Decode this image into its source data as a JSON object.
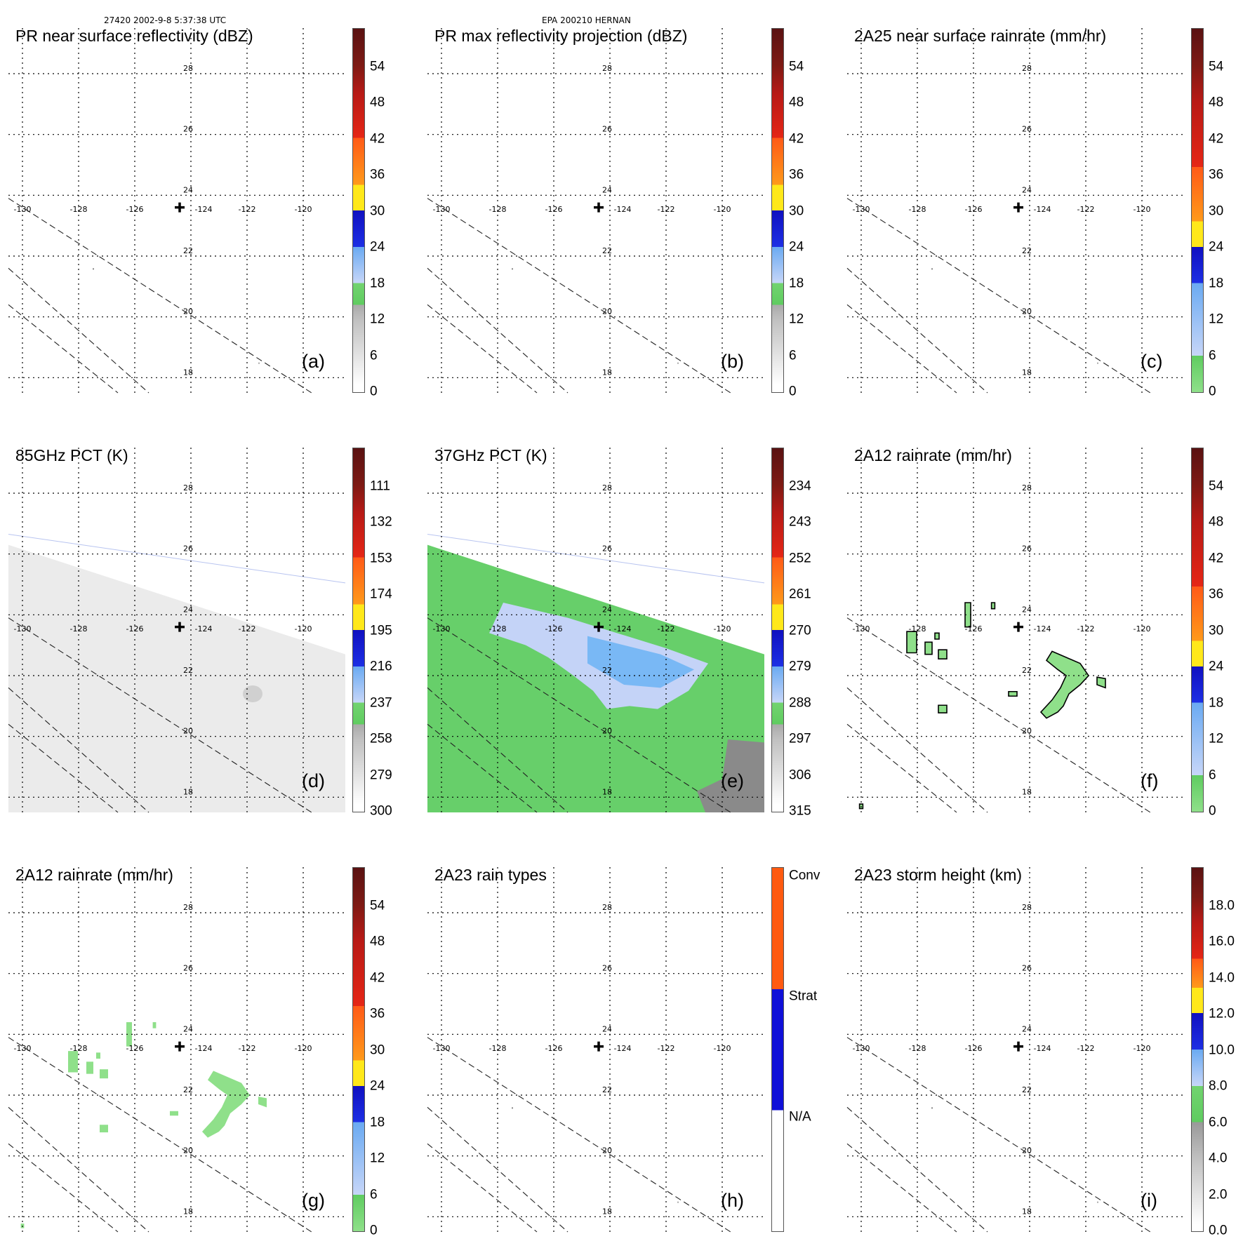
{
  "header": {
    "left": "27420 2002-9-8 5:37:38 UTC",
    "center": "EPA 200210 HERNAN"
  },
  "colors": {
    "green": "#67cf6a",
    "lightgreen": "#8fe08a",
    "paleblue": "#c4d3f7",
    "skyblue": "#79b8f5",
    "blue": "#1f43e8",
    "navy": "#1010c0",
    "yellow": "#ffe818",
    "orange": "#ff9a1a",
    "red": "#e52616",
    "darkred": "#a0161a",
    "gray": "#8a8a8a"
  },
  "panels": [
    {
      "id": "a",
      "title": "PR near surface reflectivity (dBZ)",
      "label": "(a)",
      "colorbar": {
        "ticks": [
          "54",
          "48",
          "42",
          "36",
          "30",
          "24",
          "18",
          "12",
          "6",
          "0"
        ],
        "gradient": "linear-gradient(to top,#ffffff 0%,#ffffff 2%,#c0c0c0 20%,#aaaaaa 24%,#5fcc60 24%,#72d36f 30%,#c7d6f8 30%,#6aaaf2 40%,#1d2fe4 40%,#1010c0 50%,#ffe81a 50%,#ffe81a 57%,#ff9a1a 57%,#ff5a18 70%,#e52616 70%,#b81a16 82%,#7d1a14 90%,#5a1212 100%)"
      },
      "features": "pr"
    },
    {
      "id": "b",
      "title": "PR max reflectivity projection (dBZ)",
      "label": "(b)",
      "colorbar": {
        "ticks": [
          "54",
          "48",
          "42",
          "36",
          "30",
          "24",
          "18",
          "12",
          "6",
          "0"
        ],
        "gradient": "linear-gradient(to top,#ffffff 0%,#ffffff 2%,#c0c0c0 20%,#aaaaaa 24%,#5fcc60 24%,#72d36f 30%,#c7d6f8 30%,#6aaaf2 40%,#1d2fe4 40%,#1010c0 50%,#ffe81a 50%,#ffe81a 57%,#ff9a1a 57%,#ff5a18 70%,#e52616 70%,#b81a16 82%,#7d1a14 90%,#5a1212 100%)"
      },
      "features": "pr"
    },
    {
      "id": "c",
      "title": "2A25 near surface rainrate (mm/hr)",
      "label": "(c)",
      "colorbar": {
        "ticks": [
          "54",
          "48",
          "42",
          "36",
          "30",
          "24",
          "18",
          "12",
          "6",
          "0"
        ],
        "gradient": "linear-gradient(to top,#8fe08a 0%,#5fcc60 10%,#c7d6f8 10%,#6aaaf2 30%,#1d2fe4 30%,#1010c0 40%,#ffe81a 40%,#ffe81a 47%,#ff9a1a 47%,#ff5a18 62%,#e52616 62%,#b81a16 80%,#7d1a14 90%,#5a1212 100%)"
      },
      "features": "pr"
    },
    {
      "id": "d",
      "title": "85GHz PCT (K)",
      "label": "(d)",
      "colorbar": {
        "ticks": [
          "111",
          "132",
          "153",
          "174",
          "195",
          "216",
          "237",
          "258",
          "279",
          "300"
        ],
        "gradient": "linear-gradient(to top,#ffffff 0%,#ffffff 2%,#c0c0c0 20%,#aaaaaa 24%,#5fcc60 24%,#72d36f 30%,#c7d6f8 30%,#6aaaf2 40%,#1d2fe4 40%,#1010c0 50%,#ffe81a 50%,#ffe81a 57%,#ff9a1a 57%,#ff5a18 70%,#e52616 70%,#b81a16 82%,#7d1a14 90%,#5a1212 100%)"
      },
      "features": "pct85"
    },
    {
      "id": "e",
      "title": "37GHz PCT (K)",
      "label": "(e)",
      "colorbar": {
        "ticks": [
          "234",
          "243",
          "252",
          "261",
          "270",
          "279",
          "288",
          "297",
          "306",
          "315"
        ],
        "gradient": "linear-gradient(to top,#ffffff 0%,#ffffff 2%,#c0c0c0 20%,#aaaaaa 24%,#5fcc60 24%,#72d36f 30%,#c7d6f8 30%,#6aaaf2 40%,#1d2fe4 40%,#1010c0 50%,#ffe81a 50%,#ffe81a 57%,#ff9a1a 57%,#ff5a18 70%,#e52616 70%,#b81a16 82%,#7d1a14 90%,#5a1212 100%)"
      },
      "features": "pct37"
    },
    {
      "id": "f",
      "title": "2A12 rainrate (mm/hr)",
      "label": "(f)",
      "colorbar": {
        "ticks": [
          "54",
          "48",
          "42",
          "36",
          "30",
          "24",
          "18",
          "12",
          "6",
          "0"
        ],
        "gradient": "linear-gradient(to top,#8fe08a 0%,#5fcc60 10%,#c7d6f8 10%,#6aaaf2 30%,#1d2fe4 30%,#1010c0 40%,#ffe81a 40%,#ffe81a 47%,#ff9a1a 47%,#ff5a18 62%,#e52616 62%,#b81a16 80%,#7d1a14 90%,#5a1212 100%)"
      },
      "features": "rain12_outlined"
    },
    {
      "id": "g",
      "title": "2A12 rainrate (mm/hr)",
      "label": "(g)",
      "colorbar": {
        "ticks": [
          "54",
          "48",
          "42",
          "36",
          "30",
          "24",
          "18",
          "12",
          "6",
          "0"
        ],
        "gradient": "linear-gradient(to top,#8fe08a 0%,#5fcc60 10%,#c7d6f8 10%,#6aaaf2 30%,#1d2fe4 30%,#1010c0 40%,#ffe81a 40%,#ffe81a 47%,#ff9a1a 47%,#ff5a18 62%,#e52616 62%,#b81a16 80%,#7d1a14 90%,#5a1212 100%)"
      },
      "features": "rain12"
    },
    {
      "id": "h",
      "title": "2A23 rain types",
      "label": "(h)",
      "colorbar": {
        "ticks": [
          "Conv",
          "Strat",
          "N/A"
        ],
        "type": "categorical",
        "gradient": "linear-gradient(to top,#ffffff 0%,#ffffff 33.3%,#1010d8 33.3%,#1010d8 66.6%,#ff5a10 66.6%,#ff5a10 100%)"
      },
      "features": "pr"
    },
    {
      "id": "i",
      "title": "2A23 storm height (km)",
      "label": "(i)",
      "colorbar": {
        "ticks": [
          "18.0",
          "16.0",
          "14.0",
          "12.0",
          "10.0",
          "8.0",
          "6.0",
          "4.0",
          "2.0",
          "0.0"
        ],
        "gradient": "linear-gradient(to top,#ffffff 0%,#ffffff 2%,#c0c0c0 20%,#999999 30%,#5fcc60 30%,#72d36f 40%,#c7d6f8 40%,#6aaaf2 50%,#1d2fe4 50%,#1010c0 60%,#ffe81a 60%,#ffe81a 67%,#ff9a1a 67%,#ff5a18 75%,#e52616 75%,#b81a16 85%,#7d1a14 92%,#5a1212 100%)"
      },
      "features": "pr"
    }
  ],
  "map": {
    "lon_labels": [
      "-130",
      "-128",
      "-126",
      "-124",
      "-122",
      "-120"
    ],
    "lat_labels": [
      "28",
      "26",
      "24",
      "22",
      "20",
      "18"
    ],
    "storm_center": {
      "lon": -124.0,
      "lat": 23.6
    }
  },
  "chart_data": {
    "type": "heatmap",
    "title": "EPA 200210 HERNAN",
    "subtitle": "27420 2002-9-8 5:37:38 UTC",
    "xlabel": "",
    "ylabel": "",
    "xlim": [
      -130.5,
      -118.5
    ],
    "ylim": [
      17.5,
      29.5
    ],
    "grid": true,
    "storm_center": [
      -124.0,
      23.6
    ],
    "panels": [
      "(a)",
      "(b)",
      "(c)",
      "(d)",
      "(e)",
      "(f)",
      "(g)",
      "(h)",
      "(i)"
    ]
  }
}
